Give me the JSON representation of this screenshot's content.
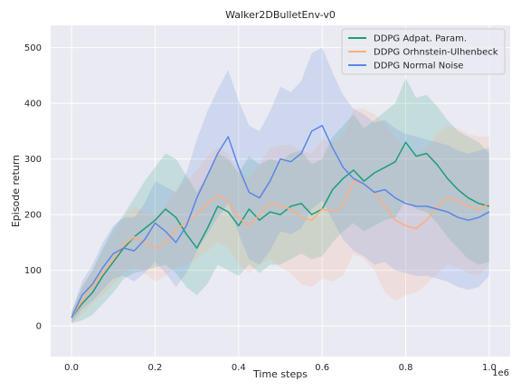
{
  "chart_data": {
    "type": "line",
    "title": "Walker2DBulletEnv-v0",
    "xlabel": "Time steps",
    "ylabel": "Episode return",
    "x_offset_label": "1e6",
    "xlim": [
      -0.05,
      1.05
    ],
    "ylim": [
      -55,
      540
    ],
    "xticks": [
      0.0,
      0.2,
      0.4,
      0.6,
      0.8,
      1.0
    ],
    "xtick_labels": [
      "0.0",
      "0.2",
      "0.4",
      "0.6",
      "0.8",
      "1.0"
    ],
    "yticks": [
      0,
      100,
      200,
      300,
      400,
      500
    ],
    "ytick_labels": [
      "0",
      "100",
      "200",
      "300",
      "400",
      "500"
    ],
    "grid": true,
    "legend_position": "top-right",
    "series": [
      {
        "name": "DDPG Adpat. Param.",
        "color": "#1b9e77",
        "x": [
          0.0,
          0.025,
          0.05,
          0.075,
          0.1,
          0.125,
          0.15,
          0.175,
          0.2,
          0.225,
          0.25,
          0.275,
          0.3,
          0.325,
          0.35,
          0.375,
          0.4,
          0.425,
          0.45,
          0.475,
          0.5,
          0.525,
          0.55,
          0.575,
          0.6,
          0.625,
          0.65,
          0.675,
          0.7,
          0.725,
          0.75,
          0.775,
          0.8,
          0.825,
          0.85,
          0.875,
          0.9,
          0.925,
          0.95,
          0.975,
          1.0
        ],
        "values": [
          15,
          40,
          60,
          90,
          115,
          140,
          160,
          175,
          190,
          210,
          195,
          165,
          140,
          175,
          215,
          205,
          180,
          210,
          190,
          205,
          200,
          215,
          220,
          200,
          210,
          245,
          265,
          280,
          260,
          275,
          285,
          295,
          330,
          305,
          310,
          290,
          265,
          245,
          230,
          220,
          215
        ],
        "lower": [
          5,
          10,
          20,
          40,
          60,
          85,
          95,
          100,
          105,
          110,
          95,
          70,
          55,
          75,
          110,
          100,
          90,
          110,
          95,
          110,
          110,
          120,
          130,
          120,
          125,
          150,
          170,
          185,
          170,
          180,
          190,
          195,
          225,
          210,
          205,
          185,
          160,
          140,
          120,
          110,
          115
        ],
        "upper": [
          25,
          70,
          100,
          140,
          175,
          200,
          230,
          260,
          285,
          310,
          300,
          270,
          240,
          270,
          310,
          300,
          275,
          305,
          290,
          300,
          295,
          310,
          315,
          290,
          300,
          340,
          360,
          380,
          355,
          370,
          385,
          400,
          445,
          410,
          415,
          395,
          370,
          350,
          340,
          330,
          310
        ]
      },
      {
        "name": "DDPG Orhnstein-Ulhenbeck",
        "color": "#fdae7f",
        "x": [
          0.0,
          0.025,
          0.05,
          0.075,
          0.1,
          0.125,
          0.15,
          0.175,
          0.2,
          0.225,
          0.25,
          0.275,
          0.3,
          0.325,
          0.35,
          0.375,
          0.4,
          0.425,
          0.45,
          0.475,
          0.5,
          0.525,
          0.55,
          0.575,
          0.6,
          0.625,
          0.65,
          0.675,
          0.7,
          0.725,
          0.75,
          0.775,
          0.8,
          0.825,
          0.85,
          0.875,
          0.9,
          0.925,
          0.95,
          0.975,
          1.0
        ],
        "values": [
          15,
          45,
          70,
          95,
          120,
          145,
          160,
          150,
          140,
          150,
          175,
          185,
          200,
          220,
          235,
          225,
          195,
          180,
          200,
          220,
          215,
          210,
          195,
          190,
          210,
          205,
          215,
          260,
          255,
          240,
          215,
          190,
          180,
          175,
          190,
          215,
          230,
          225,
          215,
          210,
          220
        ],
        "lower": [
          5,
          20,
          40,
          55,
          75,
          95,
          105,
          95,
          80,
          90,
          105,
          110,
          120,
          135,
          150,
          140,
          110,
          95,
          110,
          120,
          105,
          95,
          75,
          70,
          85,
          80,
          90,
          130,
          120,
          100,
          60,
          45,
          55,
          60,
          75,
          95,
          110,
          105,
          95,
          90,
          110
        ],
        "upper": [
          25,
          70,
          100,
          135,
          165,
          195,
          215,
          205,
          200,
          215,
          245,
          260,
          280,
          305,
          320,
          310,
          280,
          265,
          290,
          320,
          325,
          325,
          315,
          310,
          335,
          330,
          340,
          390,
          390,
          380,
          365,
          340,
          320,
          310,
          320,
          345,
          360,
          355,
          345,
          340,
          340
        ]
      },
      {
        "name": "DDPG Normal Noise",
        "color": "#5b86e5",
        "x": [
          0.0,
          0.025,
          0.05,
          0.075,
          0.1,
          0.125,
          0.15,
          0.175,
          0.2,
          0.225,
          0.25,
          0.275,
          0.3,
          0.325,
          0.35,
          0.375,
          0.4,
          0.425,
          0.45,
          0.475,
          0.5,
          0.525,
          0.55,
          0.575,
          0.6,
          0.625,
          0.65,
          0.675,
          0.7,
          0.725,
          0.75,
          0.775,
          0.8,
          0.825,
          0.85,
          0.875,
          0.9,
          0.925,
          0.95,
          0.975,
          1.0
        ],
        "values": [
          15,
          55,
          75,
          105,
          130,
          140,
          135,
          155,
          185,
          170,
          150,
          180,
          230,
          270,
          310,
          340,
          285,
          240,
          230,
          260,
          300,
          295,
          310,
          350,
          360,
          320,
          285,
          265,
          255,
          240,
          245,
          230,
          220,
          215,
          215,
          210,
          205,
          195,
          190,
          195,
          205
        ],
        "lower": [
          5,
          30,
          45,
          65,
          85,
          90,
          80,
          95,
          115,
          95,
          70,
          95,
          135,
          165,
          195,
          220,
          165,
          120,
          110,
          135,
          170,
          165,
          175,
          210,
          225,
          190,
          155,
          135,
          125,
          110,
          115,
          100,
          95,
          90,
          90,
          85,
          80,
          70,
          65,
          70,
          90
        ],
        "upper": [
          25,
          80,
          110,
          150,
          180,
          195,
          195,
          220,
          260,
          250,
          240,
          275,
          335,
          385,
          425,
          460,
          405,
          360,
          350,
          385,
          430,
          420,
          440,
          490,
          500,
          455,
          415,
          390,
          380,
          365,
          370,
          355,
          345,
          340,
          335,
          330,
          325,
          315,
          310,
          315,
          320
        ]
      }
    ]
  }
}
